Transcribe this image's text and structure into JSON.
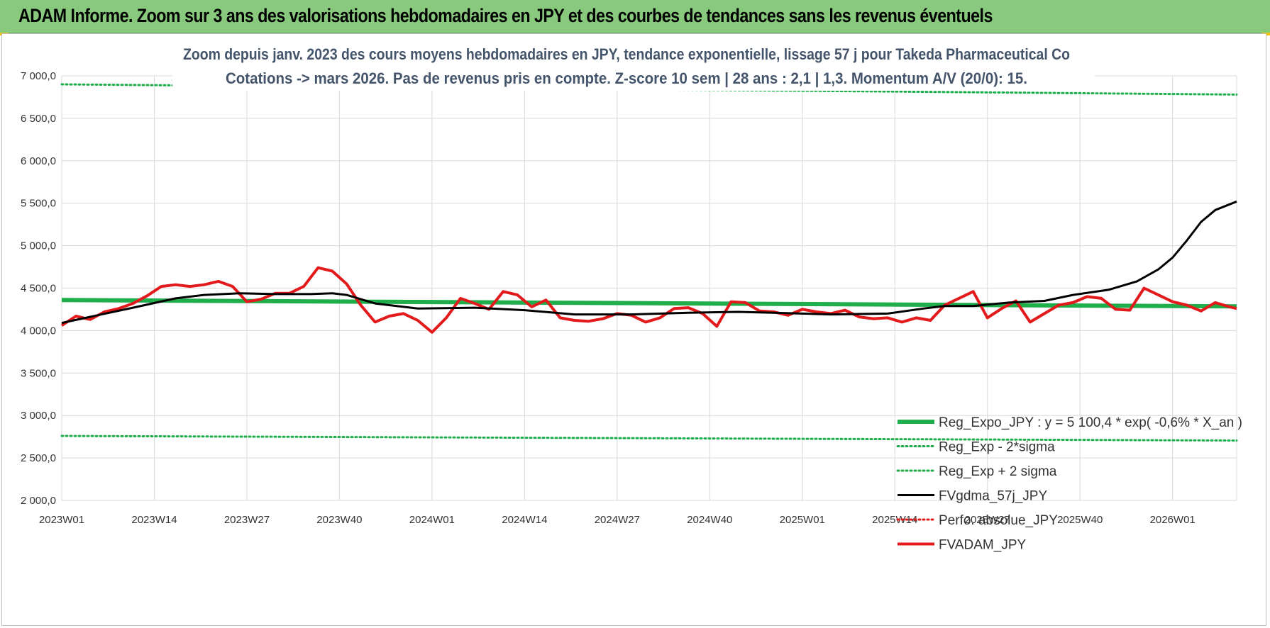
{
  "banner": {
    "title": "ADAM Informe. Zoom sur 3 ans des valorisations hebdomadaires en JPY et des courbes de tendances sans les revenus éventuels"
  },
  "colors": {
    "banner_bg": "#88c97d",
    "reg_expo": "#1fae4b",
    "sigma": "#1fae4b",
    "fvgdma": "#000000",
    "perfo": "#e31a1c",
    "fvadam": "#e31a1c",
    "grid": "#d9d9d9",
    "title_text": "#44546a"
  },
  "chart_data": {
    "type": "line",
    "title_line1": "Zoom depuis janv. 2023 des cours moyens hebdomadaires en JPY, tendance exponentielle, lissage 57 j pour Takeda Pharmaceutical Co",
    "title_line2": "Cotations -> mars 2026. Pas de revenus pris en compte. Z-score 10 sem | 28 ans : 2,1 | 1,3. Momentum A/V (20/0): 15.",
    "ylim": [
      2000,
      7000
    ],
    "y_ticks": [
      "2 000,0",
      "2 500,0",
      "3 000,0",
      "3 500,0",
      "4 000,0",
      "4 500,0",
      "5 000,0",
      "5 500,0",
      "6 000,0",
      "6 500,0",
      "7 000,0"
    ],
    "x_tick_labels": [
      "2023W01",
      "2023W14",
      "2023W27",
      "2023W40",
      "2024W01",
      "2024W14",
      "2024W27",
      "2024W40",
      "2025W01",
      "2025W14",
      "2025W27",
      "2025W40",
      "2026W01"
    ],
    "x_tick_step_weeks": 13,
    "week_count": 166,
    "grid": true,
    "legend_position": "bottom-right",
    "legend": [
      "Reg_Expo_JPY : y = 5 100,4 * exp( -0,6% *  X_an )",
      "Reg_Exp - 2*sigma",
      "Reg_Exp + 2 sigma",
      "FVgdma_57j_JPY",
      "Perfo. absolue_JPY",
      "FVADAM_JPY"
    ],
    "series": [
      {
        "name": "Reg_Expo_JPY : y = 5 100,4 * exp( -0,6% *  X_an )",
        "style": "solid-thick",
        "color": "#1fae4b",
        "x": [
          0,
          165
        ],
        "values": [
          4360,
          4285
        ]
      },
      {
        "name": "Reg_Exp - 2*sigma",
        "style": "dotted",
        "color": "#1fae4b",
        "x": [
          0,
          165
        ],
        "values": [
          2760,
          2705
        ]
      },
      {
        "name": "Reg_Exp + 2 sigma",
        "style": "dotted",
        "color": "#1fae4b",
        "x": [
          0,
          165
        ],
        "values": [
          6900,
          6780
        ]
      },
      {
        "name": "FVgdma_57j_JPY",
        "style": "solid",
        "color": "#000000",
        "x": [
          0,
          5,
          10,
          16,
          20,
          25,
          30,
          35,
          38,
          40,
          44,
          50,
          58,
          65,
          72,
          80,
          88,
          95,
          100,
          108,
          116,
          121,
          124,
          128,
          133,
          138,
          142,
          147,
          151,
          154,
          156,
          158,
          160,
          162,
          165
        ],
        "values": [
          4090,
          4180,
          4270,
          4380,
          4420,
          4440,
          4430,
          4430,
          4440,
          4420,
          4320,
          4260,
          4270,
          4240,
          4190,
          4190,
          4210,
          4220,
          4210,
          4190,
          4200,
          4260,
          4290,
          4290,
          4330,
          4350,
          4420,
          4480,
          4580,
          4720,
          4860,
          5060,
          5280,
          5420,
          5520
        ]
      },
      {
        "name": "Perfo. absolue_JPY",
        "style": "dotted",
        "color": "#e31a1c",
        "x": [],
        "values": []
      },
      {
        "name": "FVADAM_JPY",
        "style": "solid-thick",
        "color": "#e31a1c",
        "x": [
          0,
          2,
          4,
          6,
          8,
          10,
          12,
          14,
          16,
          18,
          20,
          22,
          24,
          26,
          28,
          30,
          32,
          34,
          36,
          38,
          40,
          42,
          44,
          46,
          48,
          50,
          52,
          54,
          56,
          58,
          60,
          62,
          64,
          66,
          68,
          70,
          72,
          74,
          76,
          78,
          80,
          82,
          84,
          86,
          88,
          90,
          92,
          94,
          96,
          98,
          100,
          102,
          104,
          106,
          108,
          110,
          112,
          114,
          116,
          118,
          120,
          122,
          124,
          126,
          128,
          130,
          132,
          134,
          136,
          138,
          140,
          142,
          144,
          146,
          148,
          150,
          152,
          154,
          156,
          158,
          160,
          162,
          164,
          165
        ],
        "values": [
          4060,
          4170,
          4130,
          4220,
          4260,
          4320,
          4410,
          4520,
          4540,
          4520,
          4540,
          4580,
          4520,
          4340,
          4370,
          4440,
          4440,
          4520,
          4740,
          4700,
          4550,
          4300,
          4100,
          4170,
          4200,
          4120,
          3980,
          4150,
          4380,
          4320,
          4250,
          4460,
          4420,
          4280,
          4360,
          4150,
          4120,
          4110,
          4140,
          4200,
          4180,
          4100,
          4150,
          4260,
          4270,
          4200,
          4050,
          4340,
          4330,
          4230,
          4220,
          4180,
          4250,
          4220,
          4200,
          4240,
          4160,
          4140,
          4150,
          4100,
          4150,
          4120,
          4300,
          4380,
          4460,
          4150,
          4260,
          4350,
          4100,
          4200,
          4300,
          4330,
          4400,
          4380,
          4250,
          4240,
          4500,
          4420,
          4340,
          4300,
          4230,
          4330,
          4280,
          4260
        ]
      }
    ]
  }
}
